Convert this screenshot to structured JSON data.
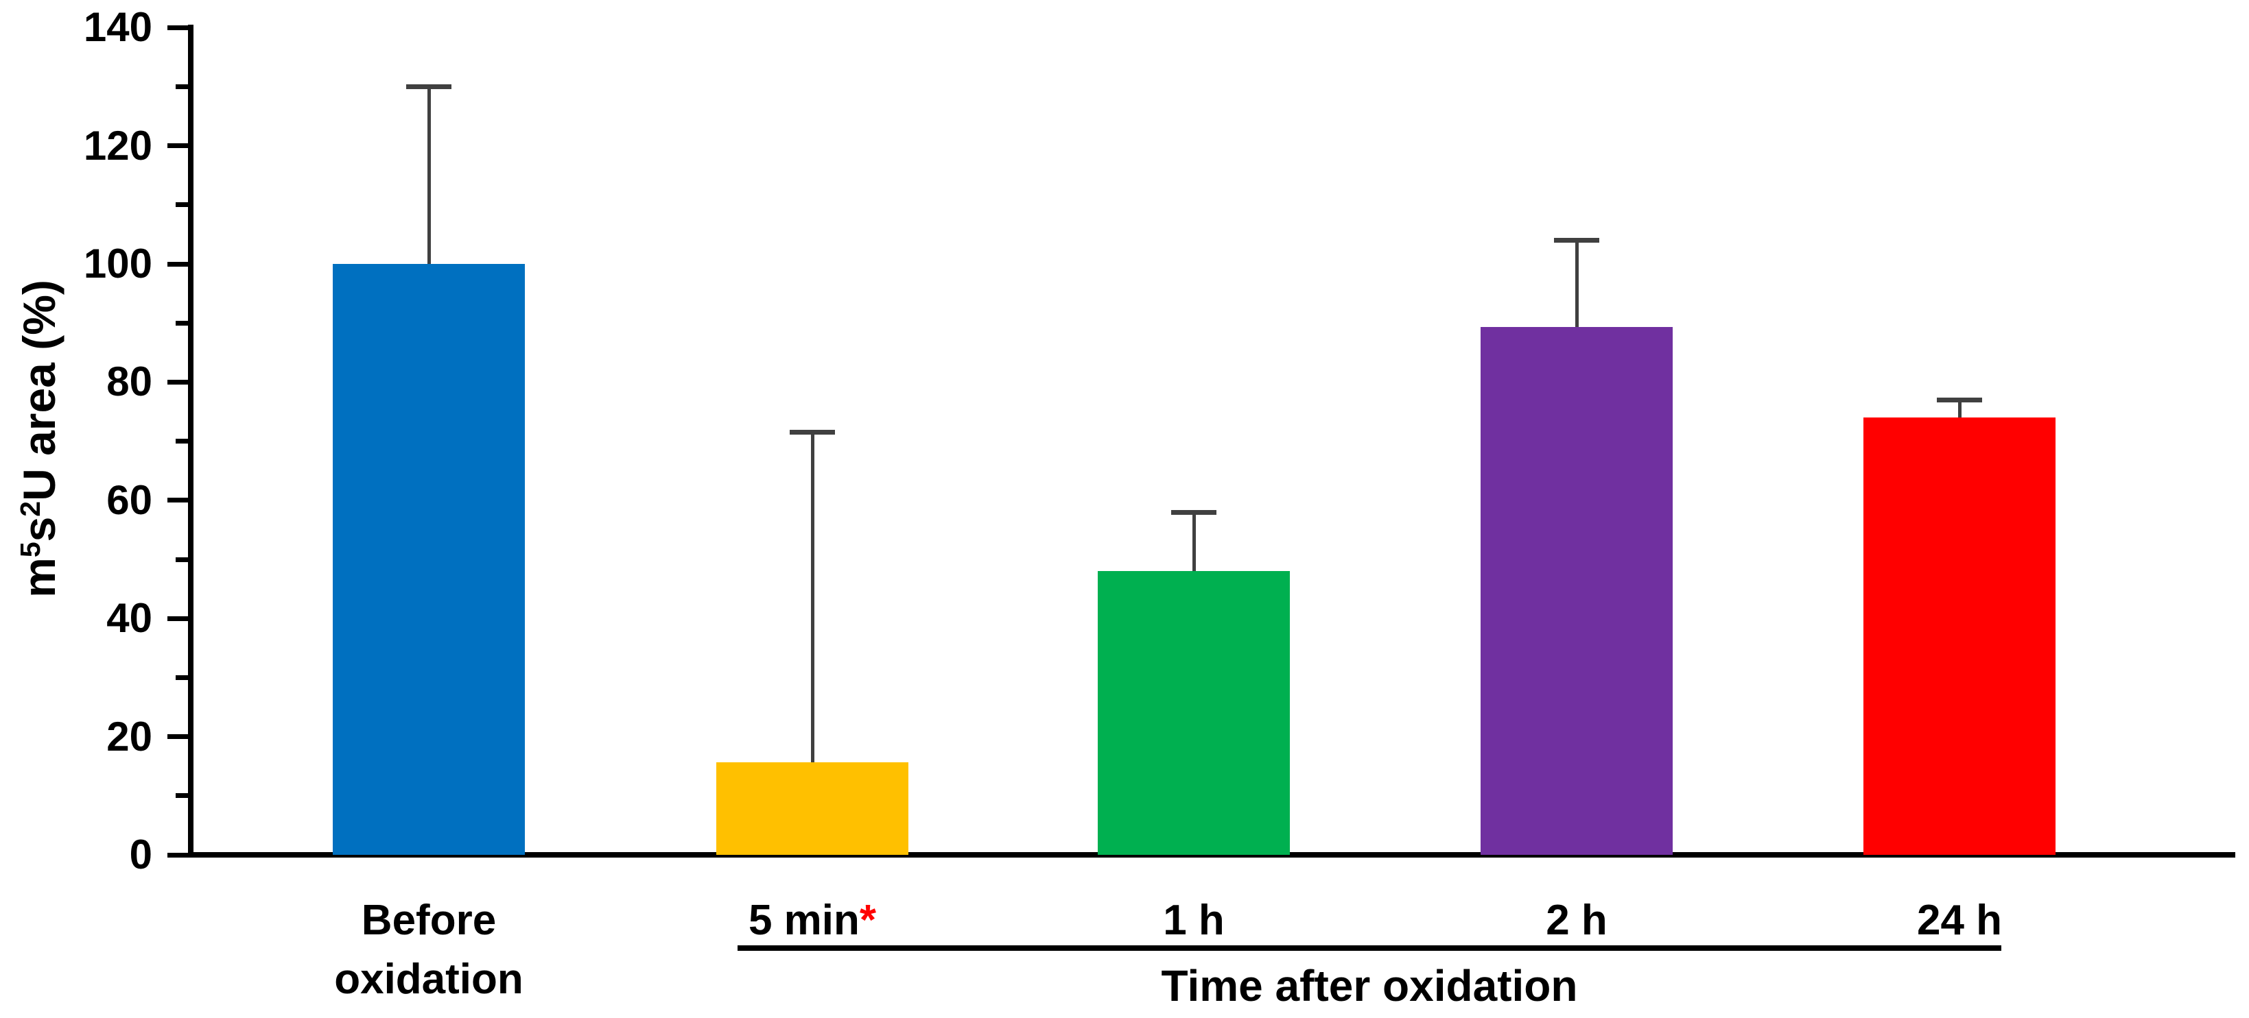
{
  "figure": {
    "background": "#FFFFFF",
    "description": "Bar chart of m5s2U area (%) before oxidation and at time points after oxidation"
  },
  "chart_data": {
    "type": "bar",
    "title": "",
    "ylabel_plain": "m5s2U area (%)",
    "ylabel_parts": [
      {
        "text": "m",
        "sup": false
      },
      {
        "text": "5",
        "sup": true
      },
      {
        "text": "s",
        "sup": false
      },
      {
        "text": "2",
        "sup": true
      },
      {
        "text": "U area (%)",
        "sup": false
      }
    ],
    "xlabel_group": "Time after oxidation",
    "categories": [
      {
        "label_lines": [
          "Before",
          "oxidation"
        ],
        "asterisk": false
      },
      {
        "label_lines": [
          "5 min"
        ],
        "asterisk": true
      },
      {
        "label_lines": [
          "1 h"
        ],
        "asterisk": false
      },
      {
        "label_lines": [
          "2 h"
        ],
        "asterisk": false
      },
      {
        "label_lines": [
          "24 h"
        ],
        "asterisk": false
      }
    ],
    "values": [
      100,
      15.7,
      48,
      89.3,
      74
    ],
    "errors_plus": [
      30,
      55.8,
      10,
      14.7,
      3
    ],
    "bar_colors": [
      "#0070C0",
      "#FFC000",
      "#00B050",
      "#7030A0",
      "#FF0000"
    ],
    "error_bar_color": "#404040",
    "asterisk_color": "#FF0000",
    "axis_color": "#000000",
    "ylim": [
      0,
      140
    ],
    "ytick_major_step": 20,
    "ytick_minor_step": 10,
    "yticks_labeled": [
      0,
      20,
      40,
      60,
      80,
      100,
      120,
      140
    ],
    "grid": false,
    "legend": null,
    "group_span": {
      "from_category_index": 1,
      "to_category_index": 4
    }
  }
}
